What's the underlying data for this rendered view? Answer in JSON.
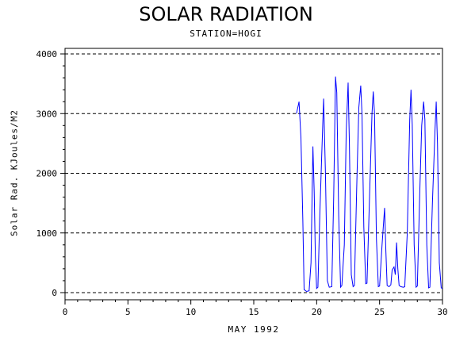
{
  "chart_data": {
    "type": "line",
    "title": "SOLAR RADIATION",
    "subtitle": "STATION=HOGI",
    "xlabel": "MAY 1992",
    "ylabel": "Solar Rad. KJoules/M2",
    "xlim": [
      0,
      30
    ],
    "ylim": [
      0,
      4000
    ],
    "xticks": [
      "0",
      "5",
      "10",
      "15",
      "20",
      "25",
      "30"
    ],
    "yticks": [
      "0",
      "1000",
      "2000",
      "3000",
      "4000"
    ],
    "grid": "horizontal dashed",
    "series": [
      {
        "color": "#0000ff",
        "x": [
          18.4,
          18.6,
          18.75,
          18.9,
          19.0,
          19.2,
          19.4,
          19.55,
          19.7,
          19.8,
          19.9,
          20.0,
          20.1,
          20.25,
          20.4,
          20.55,
          20.7,
          20.85,
          21.0,
          21.2,
          21.35,
          21.5,
          21.6,
          21.75,
          21.9,
          22.0,
          22.2,
          22.35,
          22.5,
          22.6,
          22.75,
          22.9,
          23.0,
          23.2,
          23.35,
          23.5,
          23.6,
          23.75,
          23.9,
          24.0,
          24.2,
          24.4,
          24.5,
          24.6,
          24.75,
          24.9,
          25.0,
          25.2,
          25.4,
          25.5,
          25.6,
          25.75,
          25.9,
          26.0,
          26.15,
          26.25,
          26.35,
          26.45,
          26.55,
          26.7,
          26.9,
          27.0,
          27.2,
          27.4,
          27.5,
          27.6,
          27.75,
          27.9,
          28.0,
          28.2,
          28.35,
          28.5,
          28.6,
          28.75,
          28.9,
          29.0,
          29.2,
          29.4,
          29.5,
          29.6,
          29.75,
          29.9,
          30.0
        ],
        "y": [
          3000,
          3200,
          2600,
          1200,
          50,
          20,
          30,
          500,
          2450,
          1700,
          600,
          70,
          90,
          1300,
          2300,
          3250,
          2000,
          200,
          90,
          100,
          1600,
          3620,
          3350,
          1300,
          90,
          120,
          800,
          2700,
          3520,
          2500,
          300,
          100,
          120,
          1900,
          3100,
          3470,
          3000,
          1100,
          150,
          160,
          1600,
          3000,
          3370,
          3000,
          900,
          100,
          110,
          800,
          1420,
          700,
          120,
          100,
          130,
          380,
          430,
          300,
          840,
          400,
          120,
          100,
          90,
          100,
          1000,
          2900,
          3400,
          2800,
          800,
          90,
          110,
          1700,
          2800,
          3200,
          2900,
          800,
          80,
          90,
          1500,
          2700,
          3200,
          2500,
          500,
          80,
          70
        ]
      }
    ]
  }
}
